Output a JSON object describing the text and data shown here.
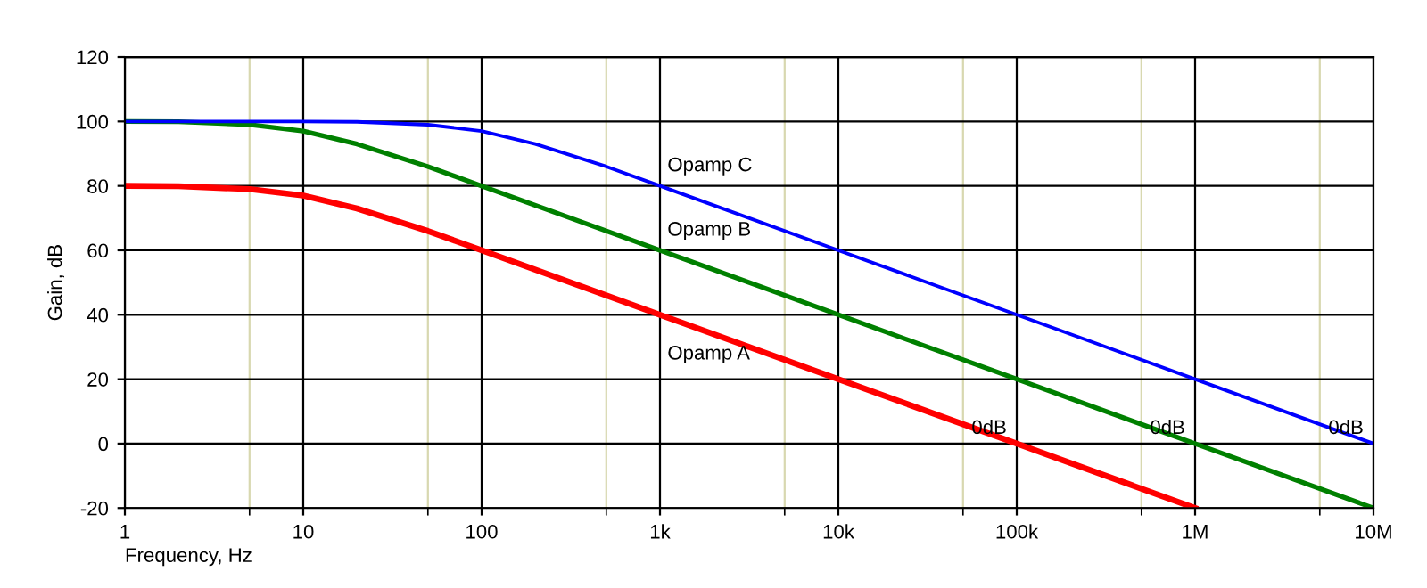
{
  "chart_data": {
    "type": "line",
    "xlabel": "Frequency, Hz",
    "ylabel": "Gain, dB",
    "log": "x",
    "xlim": [
      1,
      10000000
    ],
    "ylim": [
      -20,
      120
    ],
    "xticks": [
      1,
      {
        "value": 5,
        "label": null
      },
      {
        "value": 10,
        "label": "10"
      },
      {
        "value": 50,
        "label": null
      },
      {
        "value": 100,
        "label": "100"
      },
      {
        "value": 500,
        "label": null
      },
      {
        "value": 1000,
        "label": "1k"
      },
      {
        "value": 5000,
        "label": null
      },
      {
        "value": 10000,
        "label": "10k"
      },
      {
        "value": 50000,
        "label": null
      },
      {
        "value": 100000,
        "label": "100k"
      },
      {
        "value": 500000,
        "label": null
      },
      {
        "value": 1000000,
        "label": "1M"
      },
      {
        "value": 5000000,
        "label": null
      },
      {
        "value": 10000000,
        "label": "10M"
      }
    ],
    "yticks": [
      -20,
      0,
      20,
      40,
      60,
      80,
      100,
      120
    ],
    "grid": true,
    "line_style": "solid",
    "series": [
      {
        "color": "#ff0000",
        "x": [
          1,
          2,
          5,
          10,
          20,
          50,
          100,
          1000,
          10000,
          100000,
          1000000
        ],
        "values": [
          80,
          79.9,
          79,
          77,
          73,
          66,
          60,
          40,
          20,
          0,
          -20
        ]
      },
      {
        "color": "#008000",
        "x": [
          1,
          2,
          5,
          10,
          20,
          50,
          100,
          1000,
          10000,
          100000,
          1000000,
          10000000
        ],
        "values": [
          100,
          99.9,
          99,
          97,
          93,
          86,
          80,
          60,
          40,
          20,
          0,
          -20
        ]
      },
      {
        "color": "#0000ff",
        "x": [
          1,
          10,
          20,
          50,
          100,
          200,
          500,
          1000,
          10000,
          100000,
          1000000,
          10000000
        ],
        "values": [
          100,
          100,
          99.9,
          99,
          97,
          93,
          86,
          80,
          60,
          40,
          20,
          0
        ]
      }
    ],
    "annotations": [
      {
        "text": "Opamp A",
        "x": 1000,
        "y": 40
      },
      {
        "text": "Opamp B",
        "x": 1000,
        "y": 60
      },
      {
        "text": "Opamp C",
        "x": 1000,
        "y": 80
      },
      {
        "text": "0dB",
        "x": 100000,
        "y": 0
      },
      {
        "text": "0dB",
        "x": 1000000,
        "y": 0
      },
      {
        "text": "0dB",
        "x": 10000000,
        "y": 0
      }
    ]
  }
}
